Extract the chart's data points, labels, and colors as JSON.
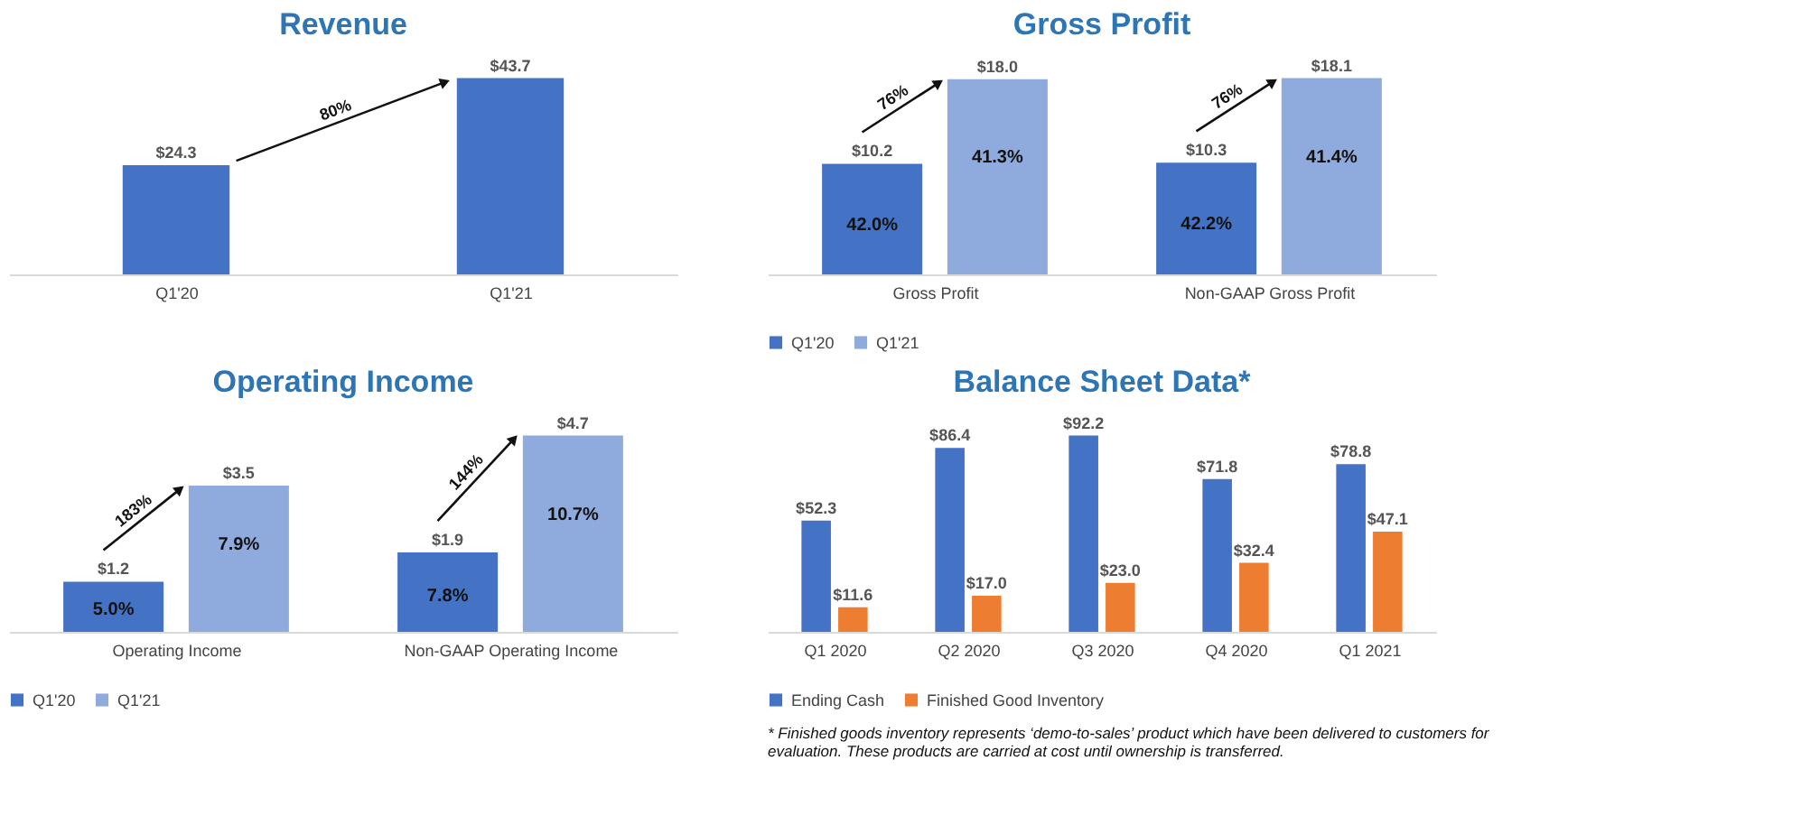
{
  "chart_data": [
    {
      "type": "bar",
      "title": "Revenue",
      "categories": [
        "Q1'20",
        "Q1'21"
      ],
      "series": [
        {
          "color": "#4472c4",
          "values": [
            24.3,
            43.7
          ],
          "value_labels": [
            "$24.3",
            "$43.7"
          ]
        }
      ],
      "annotations": [
        "80%"
      ]
    },
    {
      "type": "bar",
      "title": "Gross Profit",
      "categories": [
        "Gross Profit",
        "Non-GAAP Gross Profit"
      ],
      "legend": "bottom",
      "series": [
        {
          "name": "Q1'20",
          "color": "#4472c4",
          "values": [
            10.2,
            10.3
          ],
          "value_labels": [
            "$10.2",
            "$10.3"
          ]
        },
        {
          "name": "Q1'21",
          "color": "#8faadc",
          "values": [
            18.0,
            18.1
          ],
          "value_labels": [
            "$18.0",
            "$18.1"
          ]
        }
      ],
      "annotations": [
        "76%",
        "76%",
        "42.0%",
        "41.3%",
        "42.2%",
        "41.4%"
      ]
    },
    {
      "type": "bar",
      "title": "Operating Income",
      "categories": [
        "Operating Income",
        "Non-GAAP Operating Income"
      ],
      "legend": "bottom",
      "series": [
        {
          "name": "Q1'20",
          "color": "#4472c4",
          "values": [
            1.2,
            1.9
          ],
          "value_labels": [
            "$1.2",
            "$1.9"
          ]
        },
        {
          "name": "Q1'21",
          "color": "#8faadc",
          "values": [
            3.5,
            4.7
          ],
          "value_labels": [
            "$3.5",
            "$4.7"
          ]
        }
      ],
      "annotations": [
        "183%",
        "144%",
        "5.0%",
        "7.9%",
        "7.8%",
        "10.7%"
      ]
    },
    {
      "type": "bar",
      "title": "Balance Sheet Data*",
      "categories": [
        "Q1 2020",
        "Q2 2020",
        "Q3 2020",
        "Q4 2020",
        "Q1 2021"
      ],
      "legend": "bottom",
      "series": [
        {
          "name": "Ending Cash",
          "color": "#4472c4",
          "values": [
            52.3,
            86.4,
            92.2,
            71.8,
            78.8
          ],
          "value_labels": [
            "$52.3",
            "$86.4",
            "$92.2",
            "$71.8",
            "$78.8"
          ]
        },
        {
          "name": "Finished Good Inventory",
          "color": "#ed7d31",
          "values": [
            11.6,
            17.0,
            23.0,
            32.4,
            47.1
          ],
          "value_labels": [
            "$11.6",
            "$17.0",
            "$23.0",
            "$32.4",
            "$47.1"
          ]
        }
      ]
    },
    {
      "type": "other",
      "annotations": [
        "* Finished goods inventory represents ‘demo-to-sales’ product which have been delivered to customers for evaluation.   These products are carried at cost until ownership is transferred."
      ]
    }
  ]
}
